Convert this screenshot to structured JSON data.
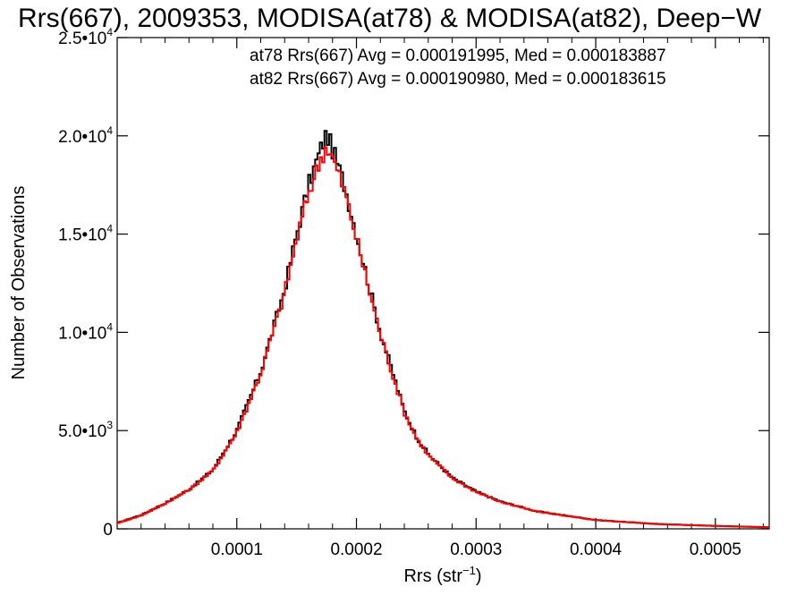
{
  "chart_data": {
    "type": "line",
    "title": "Rrs(667), 2009353, MODISA(at78) & MODISA(at82), Deep−W",
    "xlabel_main": "Rrs (str",
    "xlabel_sup": "−1",
    "xlabel_close": ")",
    "ylabel": "Number of Observations",
    "xlim": [
      0.0,
      0.000545
    ],
    "ylim": [
      0,
      25000
    ],
    "x_ticks": [
      {
        "value": 0.0001,
        "label": "0.0001"
      },
      {
        "value": 0.0002,
        "label": "0.0002"
      },
      {
        "value": 0.0003,
        "label": "0.0003"
      },
      {
        "value": 0.0004,
        "label": "0.0004"
      },
      {
        "value": 0.0005,
        "label": "0.0005"
      }
    ],
    "y_ticks": [
      {
        "value": 0,
        "mant": "0",
        "exp": ""
      },
      {
        "value": 5000,
        "mant": "5.0•10",
        "exp": "3"
      },
      {
        "value": 10000,
        "mant": "1.0•10",
        "exp": "4"
      },
      {
        "value": 15000,
        "mant": "1.5•10",
        "exp": "4"
      },
      {
        "value": 20000,
        "mant": "2.0•10",
        "exp": "4"
      },
      {
        "value": 25000,
        "mant": "2.5•10",
        "exp": "4"
      }
    ],
    "annotations": [
      {
        "text": "at78 Rrs(667) Avg = 0.000191995, Med = 0.000183887",
        "color": "#000000"
      },
      {
        "text": "at82 Rrs(667) Avg = 0.000190980, Med = 0.000183615",
        "color": "#ff0000"
      }
    ],
    "x": [
      0.0,
      2e-05,
      4e-05,
      6e-05,
      8e-05,
      0.0001,
      0.00012,
      0.00014,
      0.00015,
      0.00016,
      0.00017,
      0.000175,
      0.00018,
      0.00019,
      0.0002,
      0.00021,
      0.00022,
      0.00023,
      0.00024,
      0.00025,
      0.00026,
      0.00028,
      0.0003,
      0.00032,
      0.00035,
      0.0004,
      0.00045,
      0.0005,
      0.000545
    ],
    "series": [
      {
        "name": "at78",
        "color": "#000000",
        "values": [
          300,
          700,
          1300,
          2000,
          3000,
          5000,
          8000,
          12200,
          15000,
          17500,
          19300,
          20100,
          19300,
          17500,
          15000,
          12500,
          10000,
          8000,
          6000,
          4700,
          3800,
          2600,
          1900,
          1400,
          900,
          450,
          250,
          150,
          80
        ]
      },
      {
        "name": "at82",
        "color": "#ff0000",
        "values": [
          280,
          680,
          1280,
          1980,
          2950,
          4900,
          7900,
          12000,
          14700,
          17100,
          18800,
          19500,
          18900,
          17200,
          14800,
          12300,
          9900,
          7900,
          5950,
          4650,
          3750,
          2580,
          1880,
          1380,
          890,
          440,
          245,
          145,
          75
        ]
      }
    ],
    "grid": false,
    "legend": "none"
  }
}
